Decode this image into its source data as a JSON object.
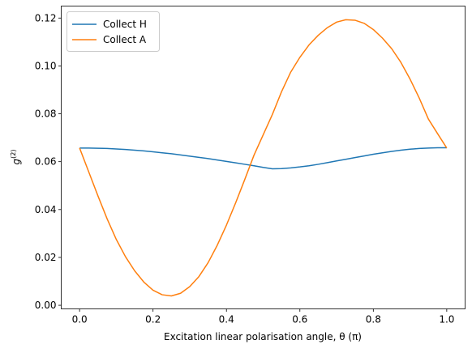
{
  "chart_data": {
    "type": "line",
    "xlabel": "Excitation linear polarisation angle, θ (π)",
    "ylabel": "g(2)",
    "ylabel_main": "g",
    "ylabel_sup": "(2)",
    "xlim": [
      -0.05,
      1.05
    ],
    "ylim": [
      -0.0015,
      0.125
    ],
    "xticks": [
      0.0,
      0.2,
      0.4,
      0.6,
      0.8,
      1.0
    ],
    "xtick_labels": [
      "0.0",
      "0.2",
      "0.4",
      "0.6",
      "0.8",
      "1.0"
    ],
    "yticks": [
      0.0,
      0.02,
      0.04,
      0.06,
      0.08,
      0.1,
      0.12
    ],
    "ytick_labels": [
      "0.00",
      "0.02",
      "0.04",
      "0.06",
      "0.08",
      "0.10",
      "0.12"
    ],
    "grid": false,
    "legend_position": "top-left",
    "x": [
      0.0,
      0.025,
      0.05,
      0.075,
      0.1,
      0.125,
      0.15,
      0.175,
      0.2,
      0.225,
      0.25,
      0.275,
      0.3,
      0.325,
      0.35,
      0.375,
      0.4,
      0.425,
      0.45,
      0.475,
      0.5,
      0.525,
      0.55,
      0.575,
      0.6,
      0.625,
      0.65,
      0.675,
      0.7,
      0.725,
      0.75,
      0.775,
      0.8,
      0.825,
      0.85,
      0.875,
      0.9,
      0.925,
      0.95,
      0.975,
      1.0
    ],
    "series": [
      {
        "name": "Collect H",
        "color": "#1f77b4",
        "values": [
          0.0657,
          0.0657,
          0.0656,
          0.0655,
          0.0653,
          0.0651,
          0.0648,
          0.0645,
          0.0641,
          0.0637,
          0.0633,
          0.0628,
          0.0623,
          0.0618,
          0.0613,
          0.0607,
          0.0601,
          0.0595,
          0.0589,
          0.0583,
          0.0576,
          0.057,
          0.0571,
          0.0574,
          0.0578,
          0.0583,
          0.0589,
          0.0596,
          0.0603,
          0.061,
          0.0617,
          0.0624,
          0.0631,
          0.0637,
          0.0643,
          0.0648,
          0.0652,
          0.0655,
          0.0657,
          0.0658,
          0.0658
        ]
      },
      {
        "name": "Collect A",
        "color": "#ff7f0e",
        "values": [
          0.0657,
          0.0557,
          0.0457,
          0.0361,
          0.0275,
          0.0203,
          0.0144,
          0.0097,
          0.0063,
          0.0044,
          0.0039,
          0.005,
          0.0078,
          0.012,
          0.0178,
          0.0251,
          0.0335,
          0.0428,
          0.0526,
          0.0627,
          0.0712,
          0.0797,
          0.0892,
          0.0974,
          0.1036,
          0.1088,
          0.1128,
          0.116,
          0.1183,
          0.1193,
          0.1191,
          0.1178,
          0.1152,
          0.1116,
          0.1072,
          0.1015,
          0.0945,
          0.0866,
          0.0778,
          0.0717,
          0.0657
        ]
      }
    ]
  }
}
